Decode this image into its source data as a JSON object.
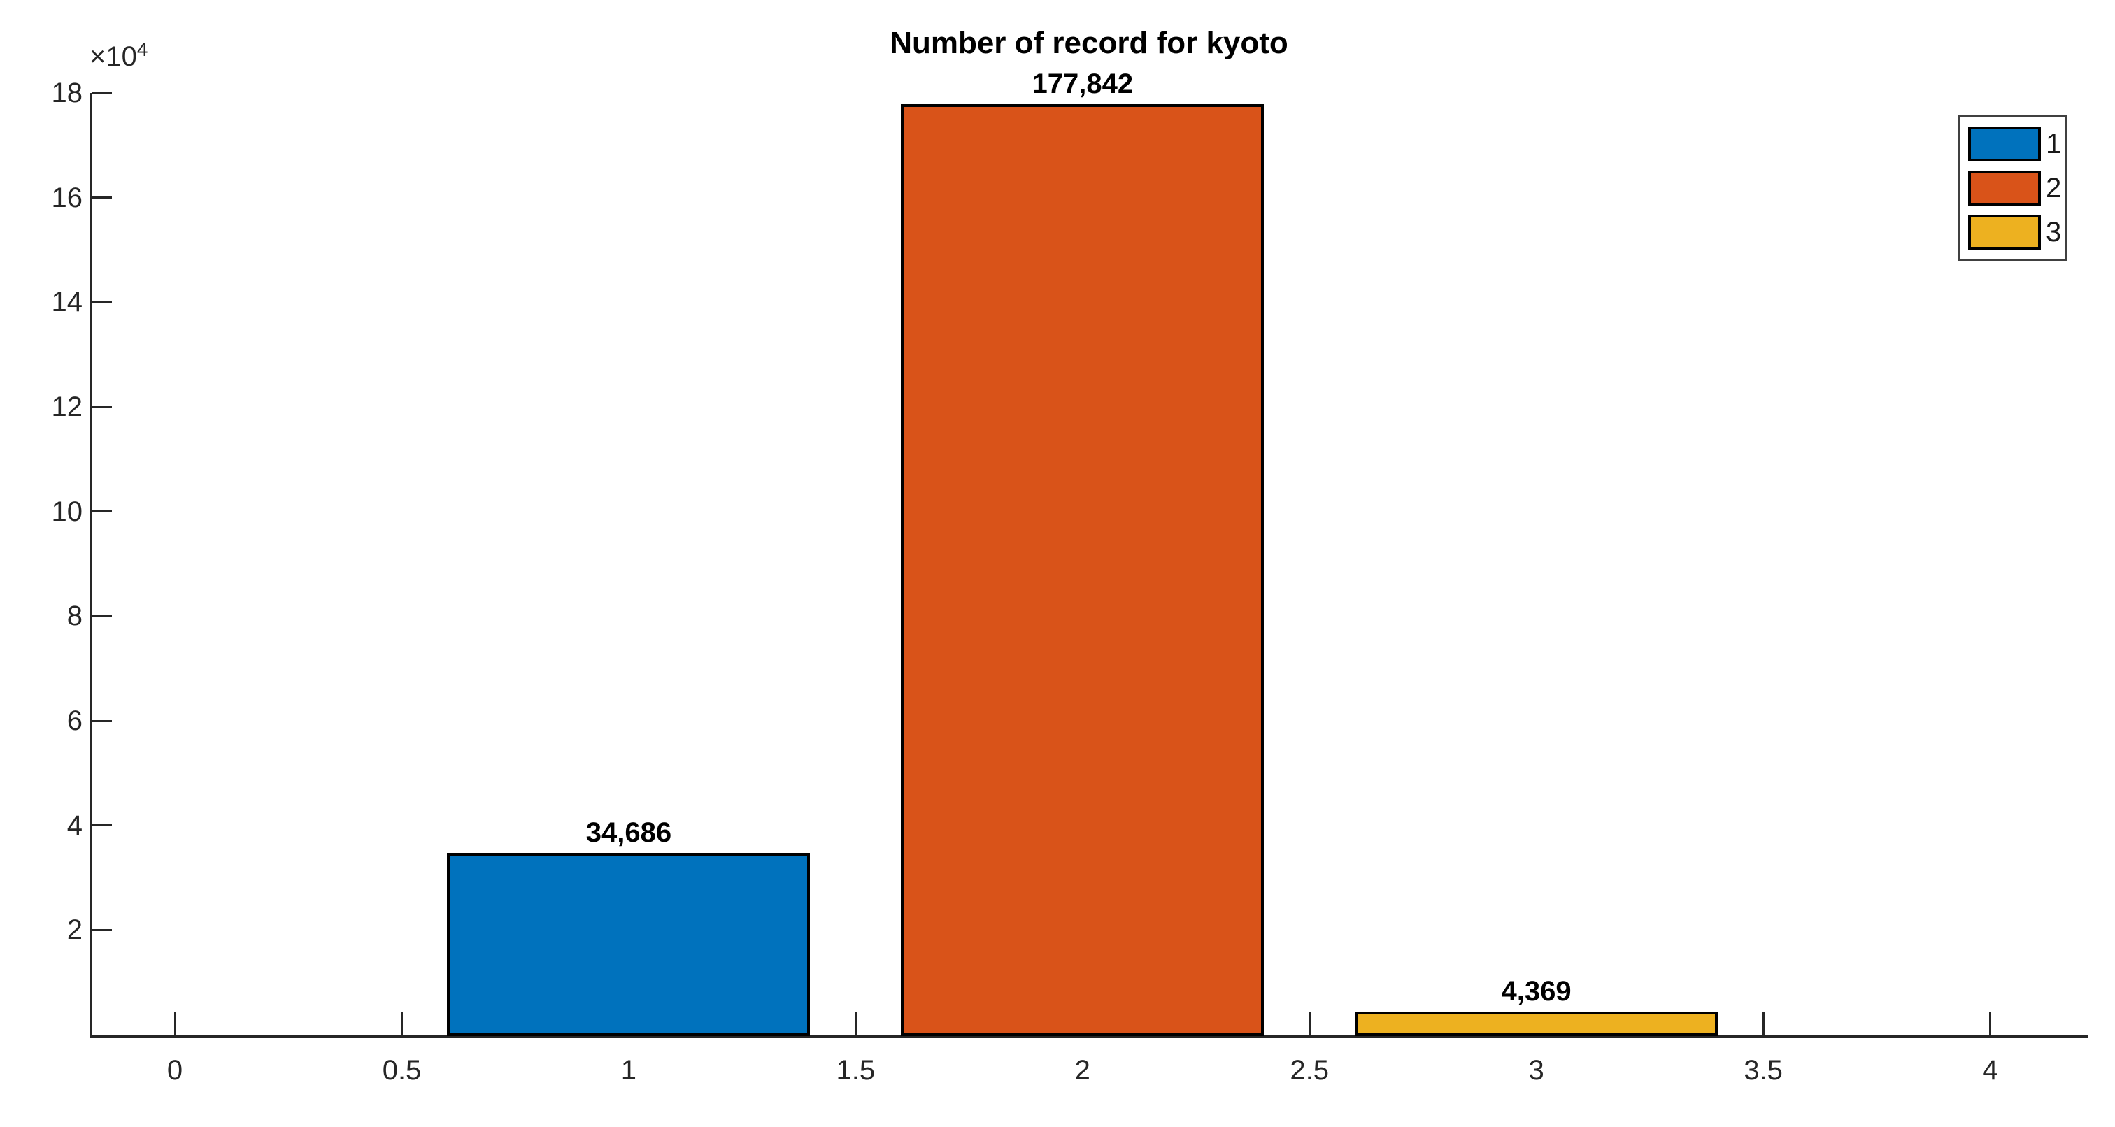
{
  "figure": {
    "background": "#ffffff"
  },
  "chart_data": {
    "type": "bar",
    "title": "Number of record for kyoto",
    "categories": [
      "1",
      "2",
      "3"
    ],
    "x": [
      1,
      2,
      3
    ],
    "values": [
      34686,
      177842,
      4369
    ],
    "value_labels": [
      "34,686",
      "177,842",
      "4,369"
    ],
    "series_colors": [
      "#0072bd",
      "#d95319",
      "#edb120"
    ],
    "bar_width": 0.8,
    "xlabel": "",
    "ylabel": "",
    "xlim": [
      -0.185,
      4.215
    ],
    "ylim": [
      0,
      180000
    ],
    "x_tick_values": [
      0,
      0.5,
      1,
      1.5,
      2,
      2.5,
      3,
      3.5,
      4
    ],
    "x_tick_labels": [
      "0",
      "0.5",
      "1",
      "1.5",
      "2",
      "2.5",
      "3",
      "3.5",
      "4"
    ],
    "y_tick_values": [
      20000,
      40000,
      60000,
      80000,
      100000,
      120000,
      140000,
      160000,
      180000
    ],
    "y_tick_labels": [
      "2",
      "4",
      "6",
      "8",
      "10",
      "12",
      "14",
      "16",
      "18"
    ],
    "y_multiplier": {
      "base": "×10",
      "exponent": "4"
    },
    "grid": false,
    "axis_color": "#262626",
    "bar_edge_color": "#000000",
    "legend": {
      "position": "top-right",
      "entries": [
        {
          "label": "1",
          "color": "#0072bd"
        },
        {
          "label": "2",
          "color": "#d95319"
        },
        {
          "label": "3",
          "color": "#edb120"
        }
      ]
    }
  }
}
